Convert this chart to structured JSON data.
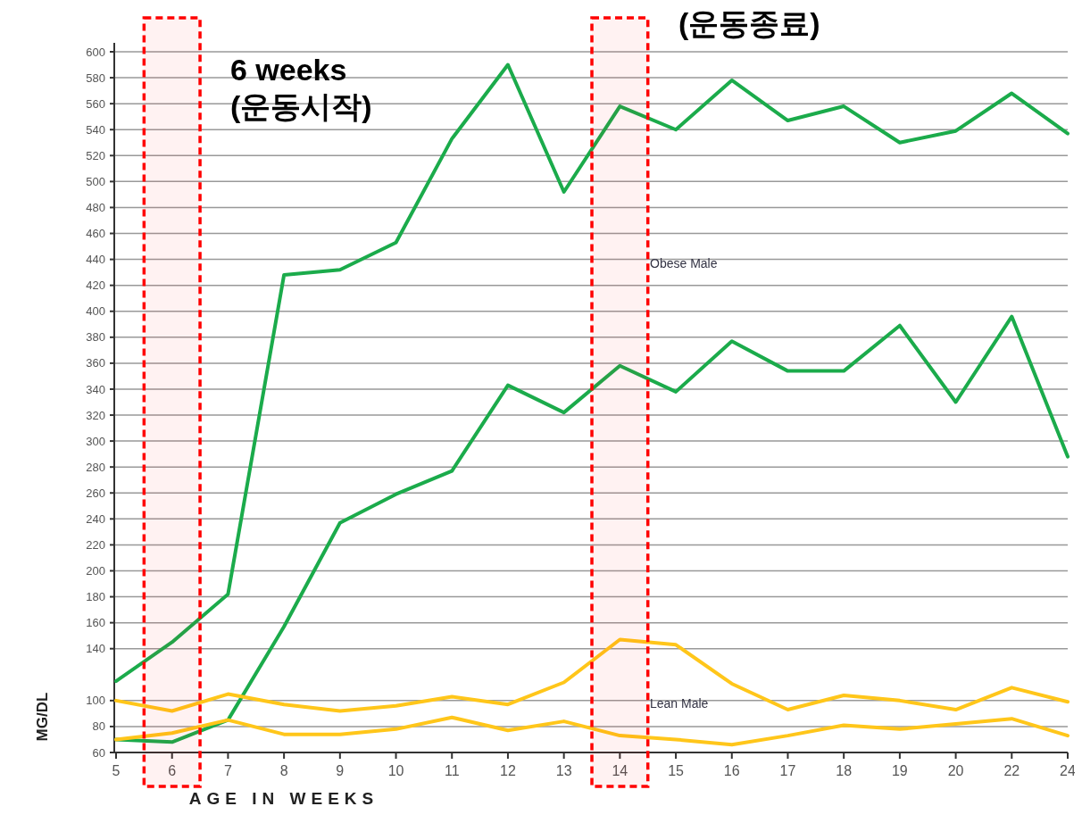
{
  "chart_data": {
    "type": "line",
    "xlabel": "AGE IN WEEKS",
    "ylabel": "MG/DL",
    "categories": [
      "5",
      "6",
      "7",
      "8",
      "9",
      "10",
      "11",
      "12",
      "13",
      "14",
      "15",
      "16",
      "17",
      "18",
      "19",
      "20",
      "22",
      "24"
    ],
    "series": [
      {
        "color": "#1bab4b",
        "values": [
          115,
          145,
          182,
          428,
          432,
          453,
          533,
          590,
          492,
          558,
          540,
          578,
          547,
          558,
          530,
          539,
          568,
          537
        ]
      },
      {
        "color": "#1bab4b",
        "values": [
          70,
          68,
          85,
          157,
          237,
          259,
          277,
          343,
          322,
          358,
          338,
          377,
          354,
          354,
          389,
          330,
          396,
          288
        ]
      },
      {
        "color": "#ffc61a",
        "values": [
          100,
          92,
          105,
          97,
          92,
          96,
          103,
          97,
          114,
          147,
          143,
          113,
          93,
          104,
          100,
          93,
          110,
          99
        ]
      },
      {
        "color": "#ffc61a",
        "values": [
          70,
          75,
          85,
          74,
          74,
          78,
          87,
          77,
          84,
          73,
          70,
          66,
          73,
          81,
          78,
          82,
          86,
          73
        ]
      }
    ],
    "ylim": [
      60,
      600
    ],
    "yticks": [
      60,
      80,
      100,
      140,
      160,
      180,
      200,
      220,
      240,
      260,
      280,
      300,
      320,
      340,
      360,
      380,
      400,
      420,
      440,
      460,
      480,
      500,
      520,
      540,
      560,
      580,
      600
    ],
    "grid": "y",
    "marker": "none",
    "line_style": "solid",
    "bands": [
      {
        "axis": "x",
        "from": "6",
        "to": "6",
        "color": "#ff0000"
      },
      {
        "axis": "x",
        "from": "14",
        "to": "14",
        "color": "#ff0000"
      }
    ],
    "annotations": [
      "6 weeks\n(운동시작)",
      "(운동종료)",
      "Obese Male",
      "Lean Male"
    ]
  }
}
